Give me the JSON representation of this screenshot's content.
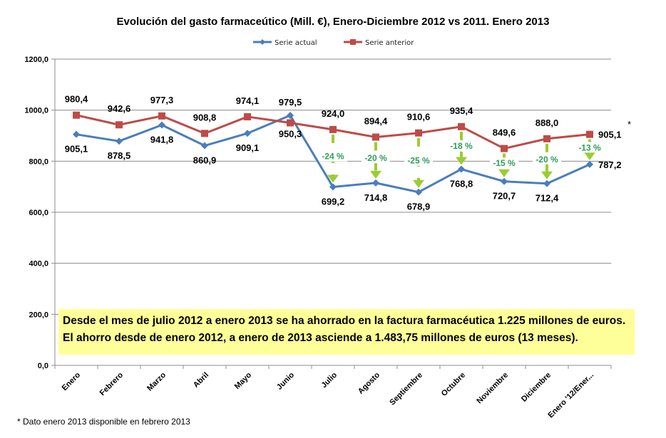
{
  "chart_data": {
    "type": "line",
    "title": "Evolución del gasto farmaceútico (Mill. €), Enero-Diciembre 2012 vs 2011. Enero 2013",
    "categories": [
      "Enero",
      "Febrero",
      "Marzo",
      "Abril",
      "Mayo",
      "Junio",
      "Julio",
      "Agosto",
      "Septiembre",
      "Octubre",
      "Noviembre",
      "Diciembre",
      "Enero '12/Ener..."
    ],
    "series": [
      {
        "name": "Serie actual",
        "color": "#4a7ebb",
        "marker": "diamond",
        "values": [
          905.1,
          878.5,
          941.8,
          860.9,
          909.1,
          979.5,
          699.2,
          714.8,
          678.9,
          768.8,
          720.7,
          712.4,
          787.2
        ],
        "labels": [
          "905,1",
          "878,5",
          "941,8",
          "860,9",
          "909,1",
          "979,5",
          "699,2",
          "714,8",
          "678,9",
          "768,8",
          "720,7",
          "712,4",
          "787,2"
        ]
      },
      {
        "name": "Serie anterior",
        "color": "#be4b48",
        "marker": "square",
        "values": [
          980.4,
          942.6,
          977.3,
          908.8,
          974.1,
          950.3,
          924.0,
          894.4,
          910.6,
          935.4,
          849.6,
          888.0,
          905.1
        ],
        "labels": [
          "980,4",
          "942,6",
          "977,3",
          "908,8",
          "974,1",
          "950,3",
          "924,0",
          "894,4",
          "910,6",
          "935,4",
          "849,6",
          "888,0",
          "905,1"
        ]
      }
    ],
    "ylim": [
      0,
      1200
    ],
    "yticks": [
      "0,0",
      "200,0",
      "400,0",
      "600,0",
      "800,0",
      "1000,0",
      "1200,0"
    ],
    "grid": true,
    "legend": "top-center",
    "annotations": {
      "percent_changes": [
        {
          "category_index": 6,
          "label": "-24 %"
        },
        {
          "category_index": 7,
          "label": "-20 %"
        },
        {
          "category_index": 8,
          "label": "-25 %"
        },
        {
          "category_index": 9,
          "label": "-18 %"
        },
        {
          "category_index": 10,
          "label": "-15 %"
        },
        {
          "category_index": 11,
          "label": "-20 %"
        },
        {
          "category_index": 12,
          "label": "-13 %"
        }
      ],
      "arrow_color": "#9acd32",
      "asterisk": "*"
    }
  },
  "note": {
    "line1": "Desde el mes de julio 2012 a enero 2013 se ha ahorrado en la factura farmacéutica 1.225 millones de euros.",
    "line2": "El ahorro desde de enero 2012, a enero de 2013 asciende a 1.483,75 millones de euros (13 meses).",
    "background": "#ffff99"
  },
  "footnote": "* Dato enero 2013 disponible en febrero 2013"
}
